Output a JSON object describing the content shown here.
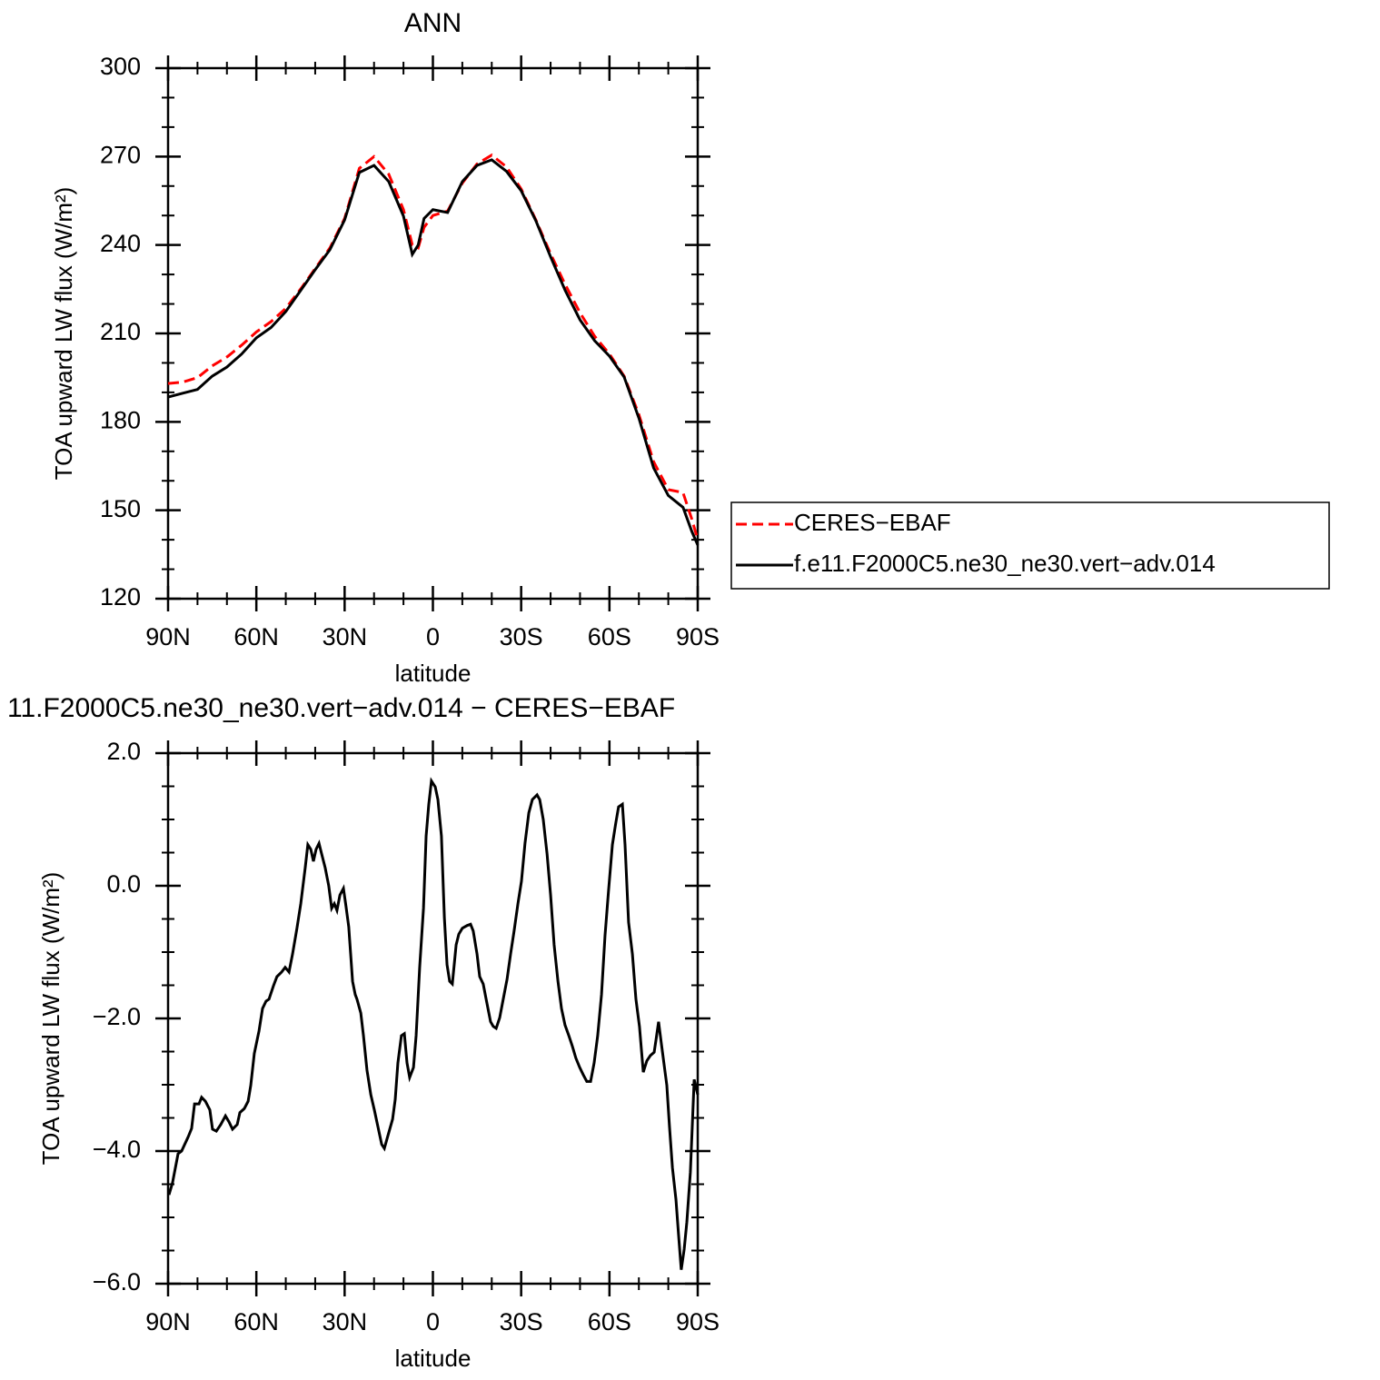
{
  "chart_data": [
    {
      "type": "line",
      "title": "ANN",
      "ylabel": "TOA upward LW flux (W/m²)",
      "xlabel": "latitude",
      "x": [
        90,
        85,
        80,
        75,
        70,
        65,
        60,
        55,
        50,
        45,
        40,
        35,
        30,
        25,
        20,
        15,
        10,
        7,
        5,
        3,
        0,
        -5,
        -10,
        -15,
        -20,
        -25,
        -30,
        -35,
        -40,
        -45,
        -50,
        -55,
        -60,
        -65,
        -70,
        -75,
        -80,
        -85,
        -88,
        -90
      ],
      "series": [
        {
          "name": "CERES−EBAF",
          "color": "#ff0000",
          "line_style": "dashed",
          "values": [
            193,
            193.5,
            195,
            199,
            202,
            206,
            210.5,
            214,
            218.5,
            225,
            232,
            239,
            249,
            266,
            270,
            264,
            252,
            240,
            239,
            246,
            250,
            251.5,
            261,
            267.5,
            270.5,
            266.5,
            259,
            248.5,
            237,
            226.5,
            217,
            209,
            203,
            195.5,
            182.5,
            166.5,
            157,
            156,
            147,
            140
          ]
        },
        {
          "name": "f.e11.F2000C5.ne30_ne30.vert−adv.014",
          "color": "#000000",
          "line_style": "solid",
          "values": [
            188.4,
            189.7,
            191,
            195.5,
            198.6,
            203,
            208.5,
            212,
            217.4,
            224.5,
            231.6,
            238.4,
            248.5,
            264.6,
            267,
            261.5,
            249.8,
            236.8,
            240,
            249,
            252,
            251,
            261.5,
            267,
            268.9,
            265,
            258.4,
            248.2,
            236,
            224.5,
            214.6,
            207.5,
            202.3,
            195.2,
            181.3,
            164.4,
            155,
            151,
            142.8,
            138.2
          ]
        }
      ],
      "xlim": [
        90,
        -90
      ],
      "xticks": [
        {
          "value": 90,
          "label": "90N"
        },
        {
          "value": 60,
          "label": "60N"
        },
        {
          "value": 30,
          "label": "30N"
        },
        0,
        {
          "value": -30,
          "label": "30S"
        },
        {
          "value": -60,
          "label": "60S"
        },
        {
          "value": -90,
          "label": "90S"
        }
      ],
      "xminorticks": [
        80,
        70,
        50,
        40,
        20,
        10,
        -10,
        -20,
        -40,
        -50,
        -70,
        -80
      ],
      "ylim": [
        120,
        300
      ],
      "yticks": [
        120,
        150,
        180,
        210,
        240,
        270,
        300
      ],
      "yminorticks": [
        130,
        140,
        160,
        170,
        190,
        200,
        220,
        230,
        250,
        260,
        280,
        290
      ],
      "legend": "outside right"
    },
    {
      "type": "line",
      "title": "11.F2000C5.ne30_ne30.vert−adv.014 − CERES−EBAF",
      "ylabel": "TOA upward LW flux (W/m²)",
      "xlabel": "latitude",
      "x": [
        89.7,
        88.5,
        86.6,
        85.4,
        83.2,
        82.0,
        81.0,
        79.5,
        78.6,
        77.3,
        75.8,
        74.9,
        73.6,
        72.1,
        70.5,
        69.3,
        68.1,
        66.5,
        65.6,
        64.1,
        62.8,
        61.9,
        60.7,
        59.1,
        57.9,
        56.7,
        55.7,
        54.2,
        53.0,
        51.4,
        50.2,
        48.9,
        47.7,
        46.2,
        44.9,
        43.4,
        42.5,
        41.5,
        40.6,
        39.7,
        38.7,
        37.8,
        36.6,
        35.4,
        34.4,
        33.5,
        32.6,
        31.6,
        30.4,
        29.5,
        28.6,
        27.3,
        26.4,
        25.8,
        24.5,
        23.6,
        22.4,
        21.1,
        19.9,
        18.7,
        17.4,
        16.5,
        15.3,
        13.7,
        12.8,
        11.9,
        10.7,
        9.7,
        8.8,
        7.9,
        6.6,
        5.7,
        4.5,
        3.2,
        2.3,
        1.4,
        0.5,
        -0.8,
        -1.7,
        -2.9,
        -3.9,
        -4.8,
        -5.7,
        -6.6,
        -7.9,
        -8.8,
        -10.0,
        -11.6,
        -12.8,
        -13.7,
        -15.0,
        -15.9,
        -17.1,
        -18.4,
        -19.6,
        -20.5,
        -21.5,
        -22.7,
        -23.9,
        -25.2,
        -26.4,
        -27.6,
        -28.9,
        -30.1,
        -31.3,
        -32.6,
        -33.8,
        -35.4,
        -36.3,
        -37.5,
        -38.8,
        -40.0,
        -41.2,
        -42.5,
        -43.7,
        -44.9,
        -46.2,
        -47.4,
        -48.6,
        -49.9,
        -51.1,
        -52.3,
        -53.6,
        -54.8,
        -56.0,
        -57.3,
        -58.5,
        -59.7,
        -61.0,
        -62.2,
        -63.1,
        -64.4,
        -65.3,
        -66.5,
        -67.8,
        -69.0,
        -70.2,
        -71.5,
        -72.7,
        -73.9,
        -75.2,
        -75.8,
        -76.7,
        -77.7,
        -79.5,
        -80.4,
        -81.4,
        -82.6,
        -83.5,
        -84.4,
        -85.4,
        -86.3,
        -87.5,
        -88.8,
        -90.0
      ],
      "series": [
        {
          "color": "#000000",
          "line_style": "solid",
          "values": [
            -4.66,
            -4.48,
            -4.04,
            -4.0,
            -3.79,
            -3.66,
            -3.29,
            -3.29,
            -3.19,
            -3.25,
            -3.38,
            -3.67,
            -3.7,
            -3.6,
            -3.47,
            -3.56,
            -3.67,
            -3.6,
            -3.42,
            -3.36,
            -3.25,
            -3.01,
            -2.53,
            -2.19,
            -1.85,
            -1.74,
            -1.71,
            -1.51,
            -1.37,
            -1.3,
            -1.23,
            -1.3,
            -1.03,
            -0.64,
            -0.27,
            0.27,
            0.62,
            0.55,
            0.37,
            0.55,
            0.64,
            0.48,
            0.27,
            0.0,
            -0.34,
            -0.27,
            -0.37,
            -0.14,
            -0.04,
            -0.32,
            -0.62,
            -1.44,
            -1.64,
            -1.71,
            -1.92,
            -2.26,
            -2.78,
            -3.15,
            -3.38,
            -3.63,
            -3.9,
            -3.96,
            -3.77,
            -3.52,
            -3.22,
            -2.67,
            -2.26,
            -2.23,
            -2.67,
            -2.89,
            -2.74,
            -2.26,
            -1.23,
            -0.34,
            0.75,
            1.23,
            1.58,
            1.49,
            1.3,
            0.75,
            -0.48,
            -1.19,
            -1.44,
            -1.48,
            -0.89,
            -0.73,
            -0.64,
            -0.6,
            -0.58,
            -0.68,
            -1.03,
            -1.37,
            -1.48,
            -1.78,
            -2.05,
            -2.12,
            -2.15,
            -1.99,
            -1.71,
            -1.41,
            -1.03,
            -0.68,
            -0.27,
            0.07,
            0.64,
            1.1,
            1.3,
            1.37,
            1.3,
            1.0,
            0.48,
            -0.14,
            -0.89,
            -1.44,
            -1.85,
            -2.1,
            -2.26,
            -2.42,
            -2.6,
            -2.74,
            -2.85,
            -2.95,
            -2.95,
            -2.67,
            -2.26,
            -1.64,
            -0.75,
            -0.07,
            0.62,
            0.96,
            1.19,
            1.23,
            0.62,
            -0.55,
            -1.03,
            -1.71,
            -2.12,
            -2.81,
            -2.64,
            -2.56,
            -2.51,
            -2.33,
            -2.05,
            -2.4,
            -3.01,
            -3.63,
            -4.25,
            -4.73,
            -5.27,
            -5.79,
            -5.48,
            -5.07,
            -4.32,
            -2.92,
            -3.15
          ]
        }
      ],
      "xlim": [
        90,
        -90
      ],
      "xticks": [
        {
          "value": 90,
          "label": "90N"
        },
        {
          "value": 60,
          "label": "60N"
        },
        {
          "value": 30,
          "label": "30N"
        },
        0,
        {
          "value": -30,
          "label": "30S"
        },
        {
          "value": -60,
          "label": "60S"
        },
        {
          "value": -90,
          "label": "90S"
        }
      ],
      "xminorticks": [
        80,
        70,
        50,
        40,
        20,
        10,
        -10,
        -20,
        -40,
        -50,
        -70,
        -80
      ],
      "ylim": [
        -6,
        2
      ],
      "yticks": [
        {
          "value": -6,
          "label": "−6.0"
        },
        {
          "value": -4,
          "label": "−4.0"
        },
        {
          "value": -2,
          "label": "−2.0"
        },
        {
          "value": 0,
          "label": "0.0"
        },
        {
          "value": 2,
          "label": "2.0"
        }
      ],
      "yminorticks": [
        -5.5,
        -5,
        -4.5,
        -3.5,
        -3,
        -2.5,
        -1.5,
        -1,
        -0.5,
        0.5,
        1,
        1.5
      ]
    }
  ]
}
